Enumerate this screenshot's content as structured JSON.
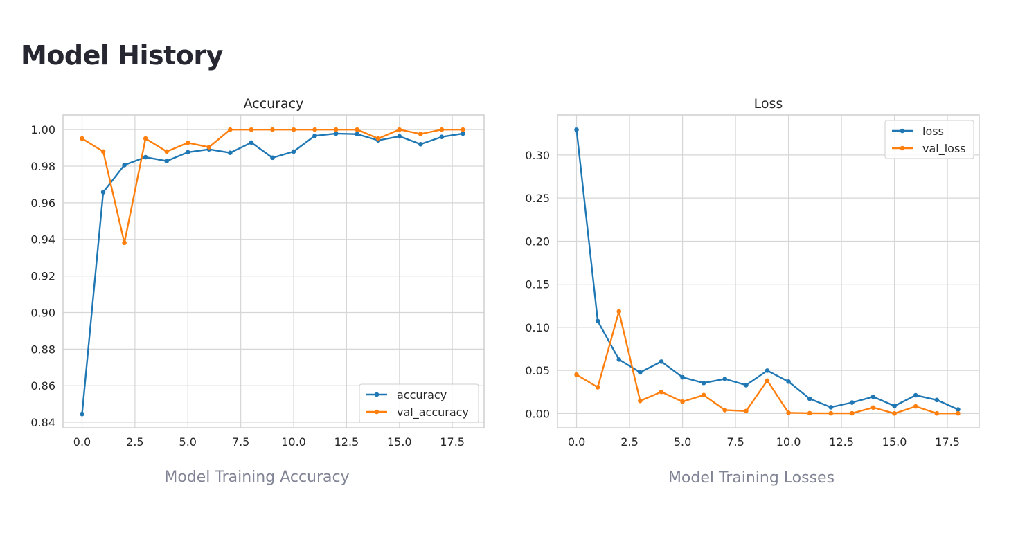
{
  "page": {
    "title": "Model History",
    "captions": [
      "Model Training Accuracy",
      "Model Training Losses"
    ]
  },
  "colors": {
    "series1": "#1f77b4",
    "series2": "#ff7f0e",
    "grid": "#d6d6d6",
    "frame": "#cfcfcf"
  },
  "chart_data": [
    {
      "type": "line",
      "title": "Accuracy",
      "xlabel": "",
      "ylabel": "",
      "x": [
        0,
        1,
        2,
        3,
        4,
        5,
        6,
        7,
        8,
        9,
        10,
        11,
        12,
        13,
        14,
        15,
        16,
        17,
        18
      ],
      "xlim": [
        -0.9,
        19.0
      ],
      "ylim": [
        0.837,
        1.008
      ],
      "xticks": [
        0.0,
        2.5,
        5.0,
        7.5,
        10.0,
        12.5,
        15.0,
        17.5
      ],
      "xtick_labels": [
        "0.0",
        "2.5",
        "5.0",
        "7.5",
        "10.0",
        "12.5",
        "15.0",
        "17.5"
      ],
      "yticks": [
        0.84,
        0.86,
        0.88,
        0.9,
        0.92,
        0.94,
        0.96,
        0.98,
        1.0
      ],
      "ytick_labels": [
        "0.84",
        "0.86",
        "0.88",
        "0.90",
        "0.92",
        "0.94",
        "0.96",
        "0.98",
        "1.00"
      ],
      "grid": true,
      "legend_position": "lower-right",
      "series": [
        {
          "name": "accuracy",
          "values": [
            0.8445,
            0.9658,
            0.9806,
            0.9849,
            0.9828,
            0.9876,
            0.9892,
            0.9873,
            0.9929,
            0.9846,
            0.988,
            0.9966,
            0.9978,
            0.9975,
            0.9941,
            0.9963,
            0.992,
            0.996,
            0.9978
          ]
        },
        {
          "name": "val_accuracy",
          "values": [
            0.9951,
            0.988,
            0.9381,
            0.9951,
            0.988,
            0.9928,
            0.9904,
            1.0,
            1.0,
            1.0,
            1.0,
            1.0,
            1.0,
            1.0,
            0.9951,
            1.0,
            0.9976,
            1.0,
            1.0
          ]
        }
      ]
    },
    {
      "type": "line",
      "title": "Loss",
      "xlabel": "",
      "ylabel": "",
      "x": [
        0,
        1,
        2,
        3,
        4,
        5,
        6,
        7,
        8,
        9,
        10,
        11,
        12,
        13,
        14,
        15,
        16,
        17,
        18
      ],
      "xlim": [
        -0.9,
        19.0
      ],
      "ylim": [
        -0.0165,
        0.3465
      ],
      "xticks": [
        0.0,
        2.5,
        5.0,
        7.5,
        10.0,
        12.5,
        15.0,
        17.5
      ],
      "xtick_labels": [
        "0.0",
        "2.5",
        "5.0",
        "7.5",
        "10.0",
        "12.5",
        "15.0",
        "17.5"
      ],
      "yticks": [
        0.0,
        0.05,
        0.1,
        0.15,
        0.2,
        0.25,
        0.3
      ],
      "ytick_labels": [
        "0.00",
        "0.05",
        "0.10",
        "0.15",
        "0.20",
        "0.25",
        "0.30"
      ],
      "grid": true,
      "legend_position": "top-right",
      "series": [
        {
          "name": "loss",
          "values": [
            0.3293,
            0.1073,
            0.0627,
            0.0478,
            0.0603,
            0.0421,
            0.0355,
            0.0402,
            0.033,
            0.0498,
            0.0371,
            0.0172,
            0.0073,
            0.0128,
            0.0195,
            0.0088,
            0.0212,
            0.0158,
            0.0047
          ]
        },
        {
          "name": "val_loss",
          "values": [
            0.0451,
            0.0305,
            0.1185,
            0.0147,
            0.0251,
            0.0138,
            0.0214,
            0.004,
            0.0029,
            0.0383,
            0.0009,
            0.0004,
            0.0003,
            0.0003,
            0.007,
            0.0001,
            0.0083,
            0.0002,
            0.0002
          ]
        }
      ]
    }
  ]
}
